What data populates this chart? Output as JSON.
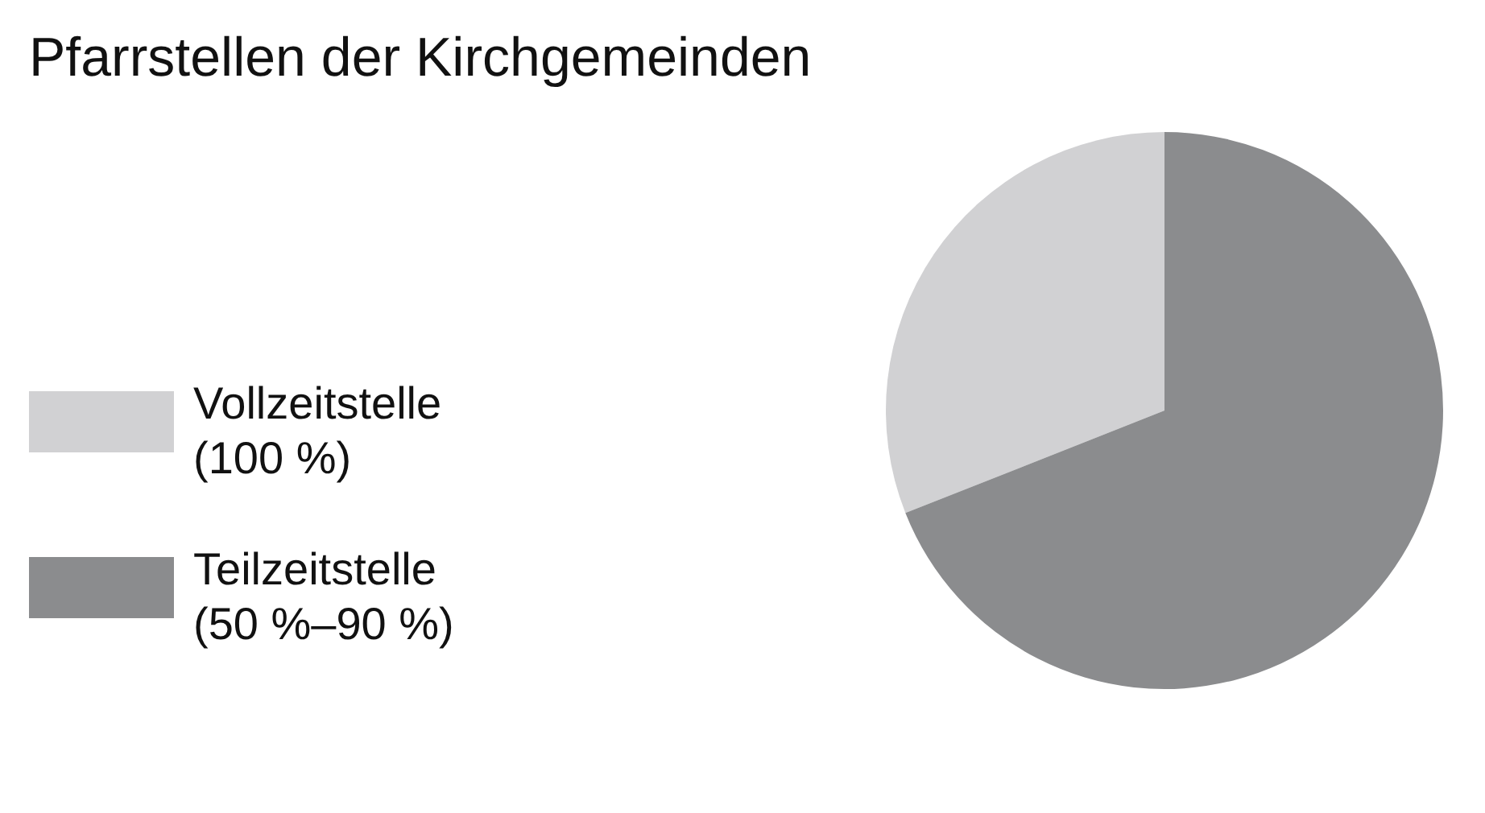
{
  "chart_data": {
    "type": "pie",
    "title": "Pfarrstellen der Kirchgemeinden",
    "categories": [
      "Vollzeitstelle (100 %)",
      "Teilzeitstelle (50 %–90 %)"
    ],
    "values": [
      31,
      69
    ],
    "colors": [
      "#d1d1d3",
      "#8b8c8e"
    ],
    "legend": "left"
  }
}
